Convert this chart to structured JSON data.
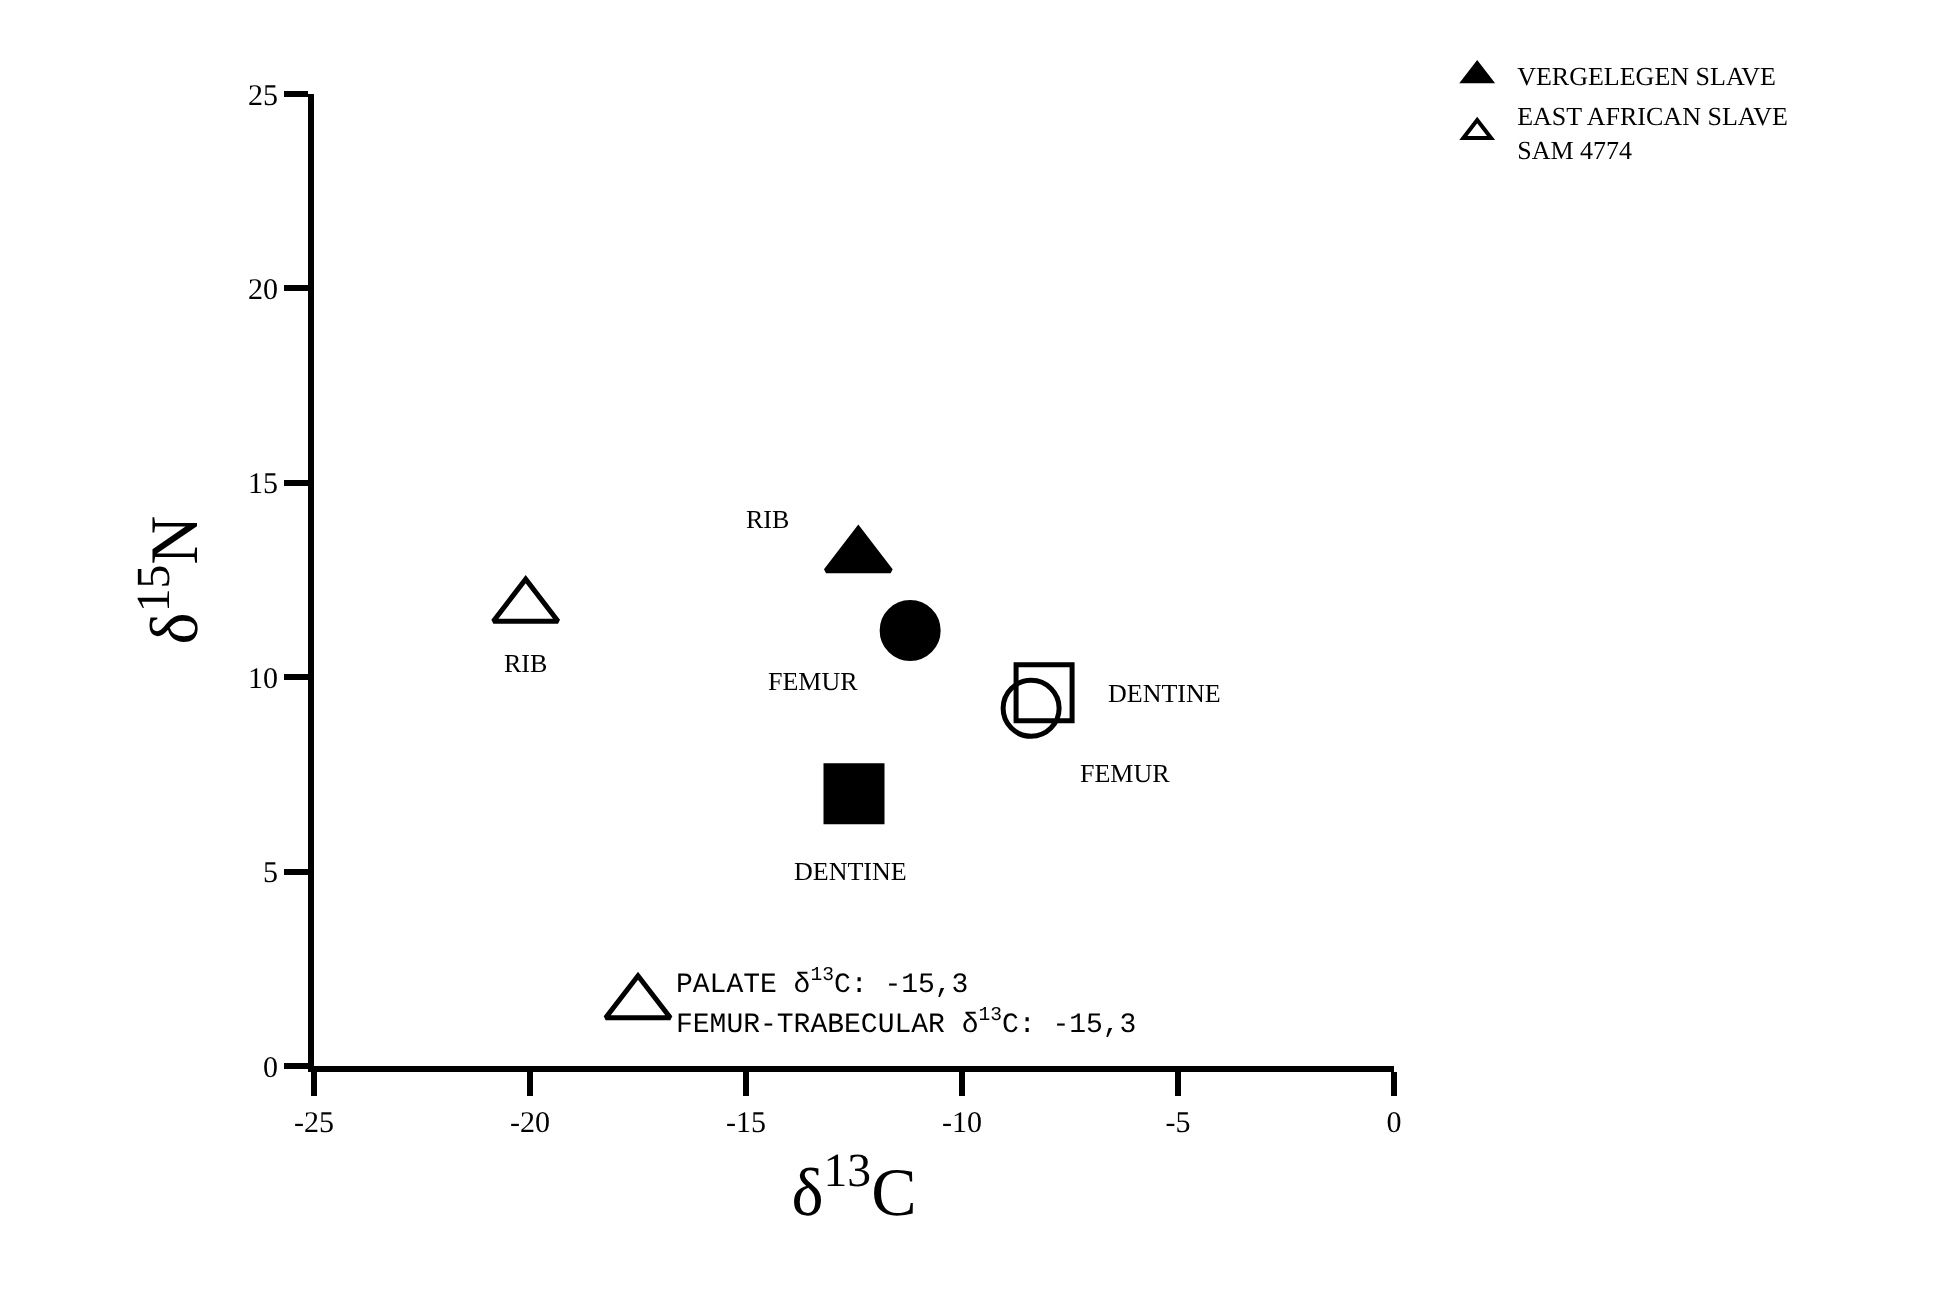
{
  "chart_data": {
    "type": "scatter",
    "xlabel": "δ$^{13}$C",
    "ylabel": "δ$^{15}$N",
    "xlim": [
      -25,
      0
    ],
    "xticks": [
      -25,
      -20,
      -15,
      -10,
      -5,
      0
    ],
    "ylim": [
      0,
      25
    ],
    "yticks": [
      0,
      5,
      10,
      15,
      20,
      25
    ],
    "grid": false,
    "legend": "top right",
    "series": [
      {
        "name": "VERGELEGEN SLAVE",
        "marker": "triangle",
        "color": "#000000",
        "x": [
          -12.4
        ],
        "values": [
          13.1
        ]
      },
      {
        "marker": "circle",
        "color": "#000000",
        "x": [
          -11.2
        ],
        "values": [
          11.2
        ]
      },
      {
        "marker": "square",
        "color": "#000000",
        "x": [
          -12.5
        ],
        "values": [
          7.0
        ]
      },
      {
        "name": "EAST AFRICAN SLAVE\nSAM 4774",
        "marker": "triangle-open",
        "color": "#000000",
        "x": [
          -20.1,
          -17.5
        ],
        "values": [
          11.8,
          1.6
        ]
      },
      {
        "marker": "square-open",
        "color": "#000000",
        "x": [
          -8.1
        ],
        "values": [
          9.6
        ]
      },
      {
        "marker": "circle-open",
        "color": "#000000",
        "x": [
          -8.4
        ],
        "values": [
          9.2
        ]
      }
    ],
    "annotations": [
      {
        "text": "RIB",
        "x": -12.4,
        "y": 13.1
      },
      {
        "text": "FEMUR",
        "x": -11.2,
        "y": 11.2
      },
      {
        "text": "DENTINE",
        "x": -12.5,
        "y": 7.0
      },
      {
        "text": "RIB",
        "x": -20.1,
        "y": 11.8
      },
      {
        "text": "DENTINE",
        "x": -8.1,
        "y": 9.6
      },
      {
        "text": "FEMUR",
        "x": -8.4,
        "y": 9.2
      },
      {
        "text": "PALATE δ$^{13}$C: -15,3",
        "x": -17.5,
        "y": 1.6
      },
      {
        "text": "FEMUR-TRABECULAR δ$^{13}$C: -15,3",
        "x": -17.5,
        "y": 1.6
      }
    ]
  }
}
